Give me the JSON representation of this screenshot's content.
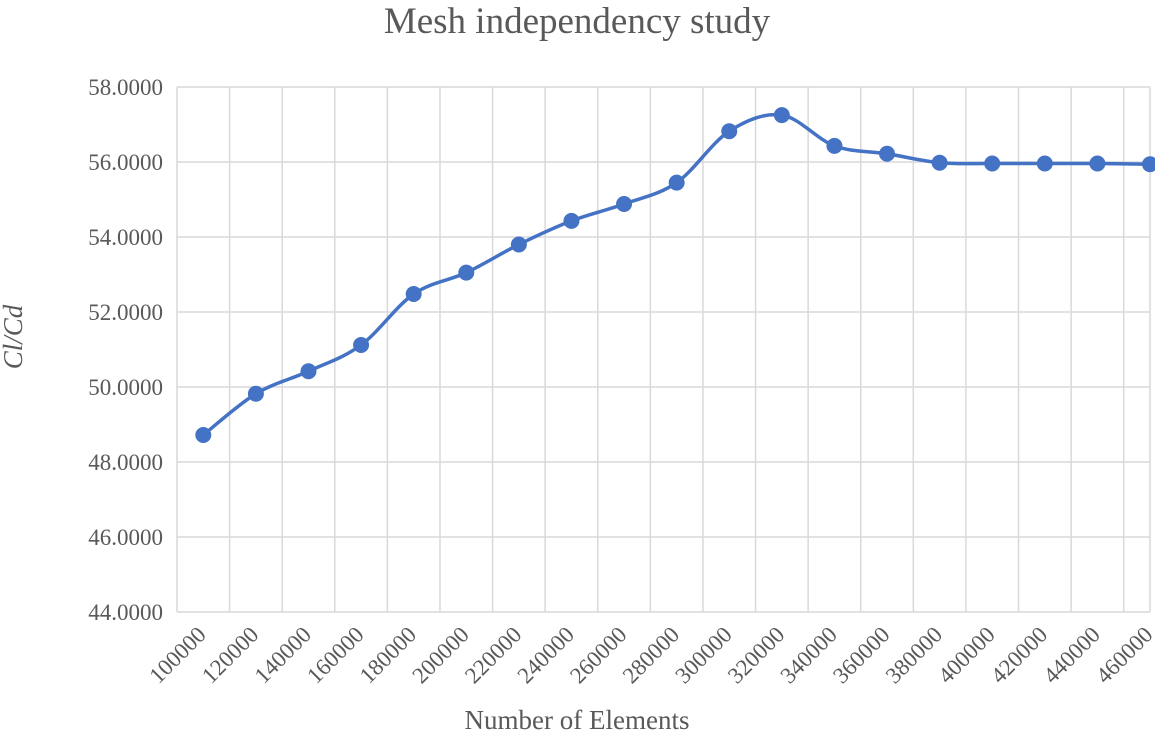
{
  "chart_data": {
    "type": "line",
    "title": "Mesh independency study",
    "xlabel": "Number of Elements",
    "ylabel": "Cl/Cd",
    "x_ticks": [
      "100000",
      "120000",
      "140000",
      "160000",
      "180000",
      "200000",
      "220000",
      "240000",
      "260000",
      "280000",
      "300000",
      "320000",
      "340000",
      "360000",
      "380000",
      "400000",
      "420000",
      "440000",
      "460000"
    ],
    "y_ticks": [
      "44.0000",
      "46.0000",
      "48.0000",
      "50.0000",
      "52.0000",
      "54.0000",
      "56.0000",
      "58.0000"
    ],
    "xlim": [
      100000,
      470000
    ],
    "ylim": [
      44,
      58
    ],
    "grid": true,
    "series": [
      {
        "name": "Cl/Cd",
        "color": "#4472c4",
        "smooth": true,
        "x": [
          110000,
          130000,
          150000,
          170000,
          190000,
          210000,
          230000,
          250000,
          270000,
          290000,
          310000,
          330000,
          350000,
          370000,
          390000,
          410000,
          430000,
          450000,
          470000
        ],
        "y": [
          48.72,
          49.82,
          50.42,
          51.12,
          52.48,
          53.05,
          53.8,
          54.43,
          54.88,
          55.45,
          56.82,
          57.25,
          56.43,
          56.22,
          55.98,
          55.96,
          55.96,
          55.96,
          55.94
        ]
      }
    ]
  }
}
